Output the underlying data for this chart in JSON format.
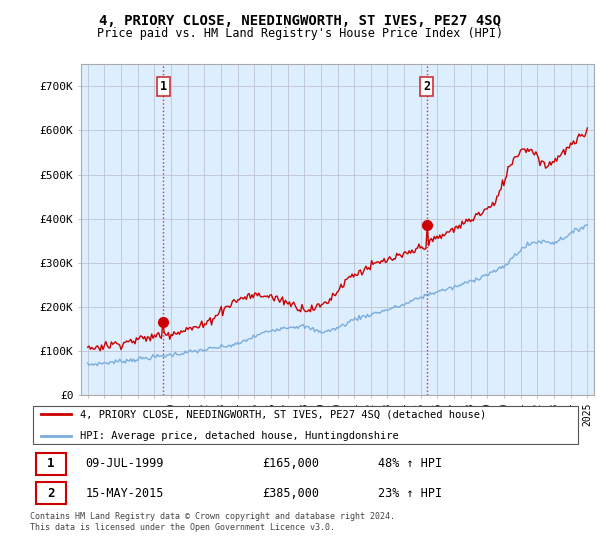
{
  "title": "4, PRIORY CLOSE, NEEDINGWORTH, ST IVES, PE27 4SQ",
  "subtitle": "Price paid vs. HM Land Registry's House Price Index (HPI)",
  "legend_line1": "4, PRIORY CLOSE, NEEDINGWORTH, ST IVES, PE27 4SQ (detached house)",
  "legend_line2": "HPI: Average price, detached house, Huntingdonshire",
  "footnote": "Contains HM Land Registry data © Crown copyright and database right 2024.\nThis data is licensed under the Open Government Licence v3.0.",
  "sale1_date": "09-JUL-1999",
  "sale1_price": "£165,000",
  "sale1_hpi": "48% ↑ HPI",
  "sale2_date": "15-MAY-2015",
  "sale2_price": "£385,000",
  "sale2_hpi": "23% ↑ HPI",
  "sale1_label": "1",
  "sale2_label": "2",
  "red_color": "#cc0000",
  "blue_color": "#7aaddc",
  "bg_plot_color": "#ddeeff",
  "background_color": "#ffffff",
  "grid_color": "#bbbbcc",
  "ylim": [
    0,
    750000
  ],
  "yticks": [
    0,
    100000,
    200000,
    300000,
    400000,
    500000,
    600000,
    700000
  ],
  "ytick_labels": [
    "£0",
    "£100K",
    "£200K",
    "£300K",
    "£400K",
    "£500K",
    "£600K",
    "£700K"
  ],
  "sale1_year": 1999.54,
  "sale2_year": 2015.37
}
